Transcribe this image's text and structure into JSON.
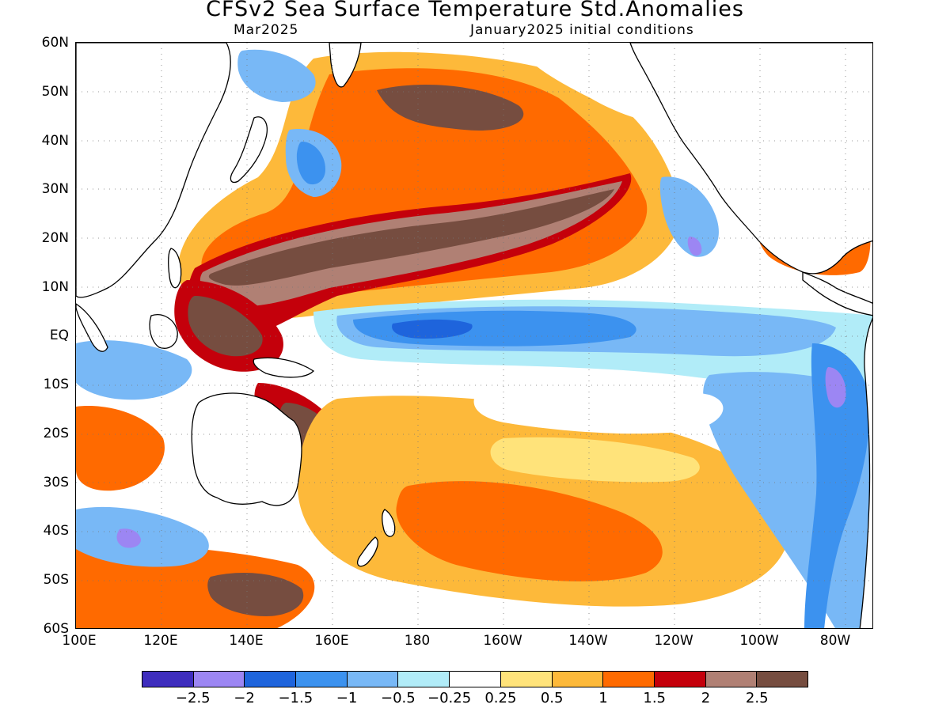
{
  "title": "CFSv2 Sea Surface Temperature Std.Anomalies",
  "subtitle_left": "Mar2025",
  "subtitle_right": "January2025 initial conditions",
  "lat_labels": [
    "60N",
    "50N",
    "40N",
    "30N",
    "20N",
    "10N",
    "EQ",
    "10S",
    "20S",
    "30S",
    "40S",
    "50S",
    "60S"
  ],
  "lon_labels": [
    "100E",
    "120E",
    "140E",
    "160E",
    "180",
    "160W",
    "140W",
    "120W",
    "100W",
    "80W"
  ],
  "colorbar": {
    "colors": [
      "#3e2dbe",
      "#9c86f3",
      "#1e64dc",
      "#3c92ef",
      "#78b8f6",
      "#b1ecf8",
      "#ffffff",
      "#ffe37a",
      "#fdb93a",
      "#ff6a00",
      "#c4000b",
      "#b08074",
      "#764d40"
    ],
    "labels": [
      "−2.5",
      "−2",
      "−1.5",
      "−1",
      "−0.5",
      "−0.25",
      "0.25",
      "0.5",
      "1",
      "1.5",
      "2",
      "2.5"
    ]
  },
  "palette": {
    "land": "#ffffff",
    "neutral": "#ffffff",
    "light_warm": "#ffe37a",
    "orange": "#fdb93a",
    "deep_orange": "#ff6a00",
    "red": "#c4000b",
    "rose": "#b08074",
    "brown": "#764d40",
    "light_cool": "#b1ecf8",
    "light_blue": "#78b8f6",
    "mid_blue": "#3c92ef",
    "deep_blue": "#1e64dc",
    "lavender": "#9c86f3"
  }
}
